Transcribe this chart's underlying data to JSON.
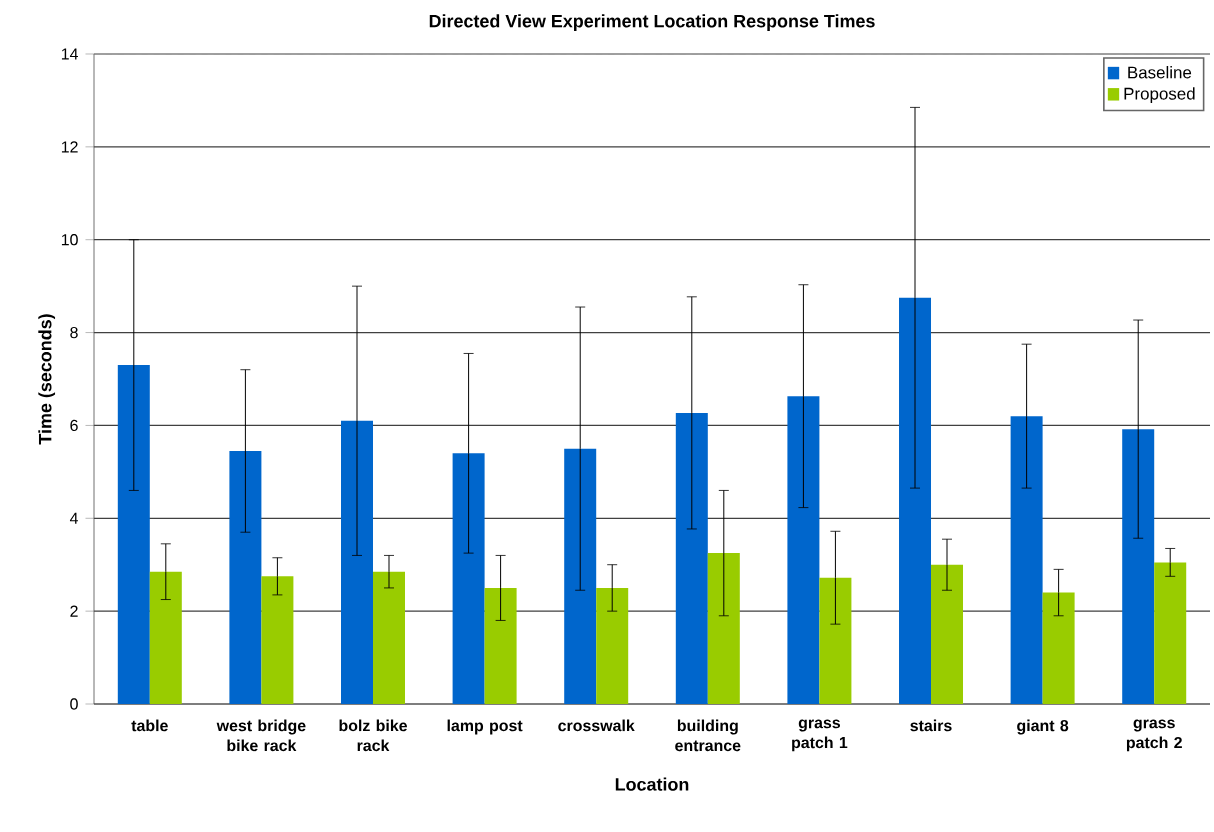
{
  "chart_data": {
    "type": "bar",
    "title": "Directed View Experiment Location Response Times",
    "xlabel": "Location",
    "ylabel": "Time (seconds)",
    "categories": [
      "table",
      "west bridge bike rack",
      "bolz bike rack",
      "lamp post",
      "crosswalk",
      "building entrance",
      "grass patch 1",
      "stairs",
      "giant 8",
      "grass patch 2"
    ],
    "series": [
      {
        "name": "Baseline",
        "color": "#0066cc",
        "values": [
          7.3,
          5.45,
          6.1,
          5.4,
          5.5,
          6.27,
          6.63,
          8.75,
          6.2,
          5.92
        ],
        "errors": [
          2.7,
          1.75,
          2.9,
          2.15,
          3.05,
          2.5,
          2.4,
          4.1,
          1.55,
          2.35
        ]
      },
      {
        "name": "Proposed",
        "color": "#99cc00",
        "values": [
          2.85,
          2.75,
          2.85,
          2.5,
          2.5,
          3.25,
          2.72,
          3.0,
          2.4,
          3.05
        ],
        "errors": [
          0.6,
          0.4,
          0.35,
          0.7,
          0.5,
          1.35,
          1.0,
          0.55,
          0.5,
          0.3
        ]
      }
    ],
    "ylim": [
      0,
      14
    ],
    "yticks": [
      0,
      2,
      4,
      6,
      8,
      10,
      12,
      14
    ],
    "grid": "y",
    "legend": "top right"
  }
}
